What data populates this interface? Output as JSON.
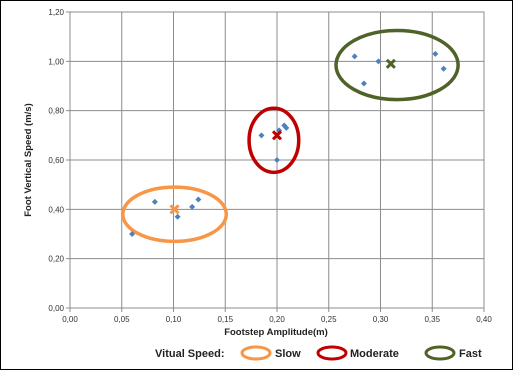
{
  "chart_data": {
    "type": "scatter",
    "xlabel": "Footstep Amplitude(m)",
    "ylabel": "Foot Vertical Speed (m/s)",
    "xlim": [
      0,
      0.4
    ],
    "ylim": [
      0,
      1.2
    ],
    "x_ticks": [
      "0,00",
      "0,05",
      "0,10",
      "0,15",
      "0,20",
      "0,25",
      "0,30",
      "0,35",
      "0,40"
    ],
    "y_ticks": [
      "0,00",
      "0,20",
      "0,40",
      "0,60",
      "0,80",
      "1,00",
      "1,20"
    ],
    "x_tick_values": [
      0,
      0.05,
      0.1,
      0.15,
      0.2,
      0.25,
      0.3,
      0.35,
      0.4
    ],
    "y_tick_values": [
      0,
      0.2,
      0.4,
      0.6,
      0.8,
      1.0,
      1.2
    ],
    "grid": true,
    "points_color": "#4f81bd",
    "series": [
      {
        "name": "Slow",
        "color": "#f79646",
        "points": [
          [
            0.06,
            0.3
          ],
          [
            0.082,
            0.43
          ],
          [
            0.104,
            0.37
          ],
          [
            0.118,
            0.41
          ],
          [
            0.124,
            0.44
          ]
        ],
        "mean": [
          0.101,
          0.4
        ],
        "ellipse_center": [
          0.101,
          0.38
        ],
        "ellipse_radius": [
          0.05,
          0.11
        ]
      },
      {
        "name": "Moderate",
        "color": "#c00000",
        "points": [
          [
            0.185,
            0.7
          ],
          [
            0.2,
            0.6
          ],
          [
            0.202,
            0.72
          ],
          [
            0.207,
            0.74
          ],
          [
            0.209,
            0.73
          ]
        ],
        "mean": [
          0.2,
          0.7
        ],
        "ellipse_center": [
          0.197,
          0.68
        ],
        "ellipse_radius": [
          0.024,
          0.13
        ]
      },
      {
        "name": "Fast",
        "color": "#4f6228",
        "points": [
          [
            0.275,
            1.02
          ],
          [
            0.284,
            0.91
          ],
          [
            0.298,
            1.0
          ],
          [
            0.353,
            1.03
          ],
          [
            0.361,
            0.97
          ]
        ],
        "mean": [
          0.31,
          0.99
        ],
        "ellipse_center": [
          0.316,
          0.985
        ],
        "ellipse_radius": [
          0.059,
          0.14
        ]
      }
    ]
  },
  "legend": {
    "title": "Vitual Speed:",
    "items": [
      "Slow",
      "Moderate",
      "Fast"
    ]
  }
}
